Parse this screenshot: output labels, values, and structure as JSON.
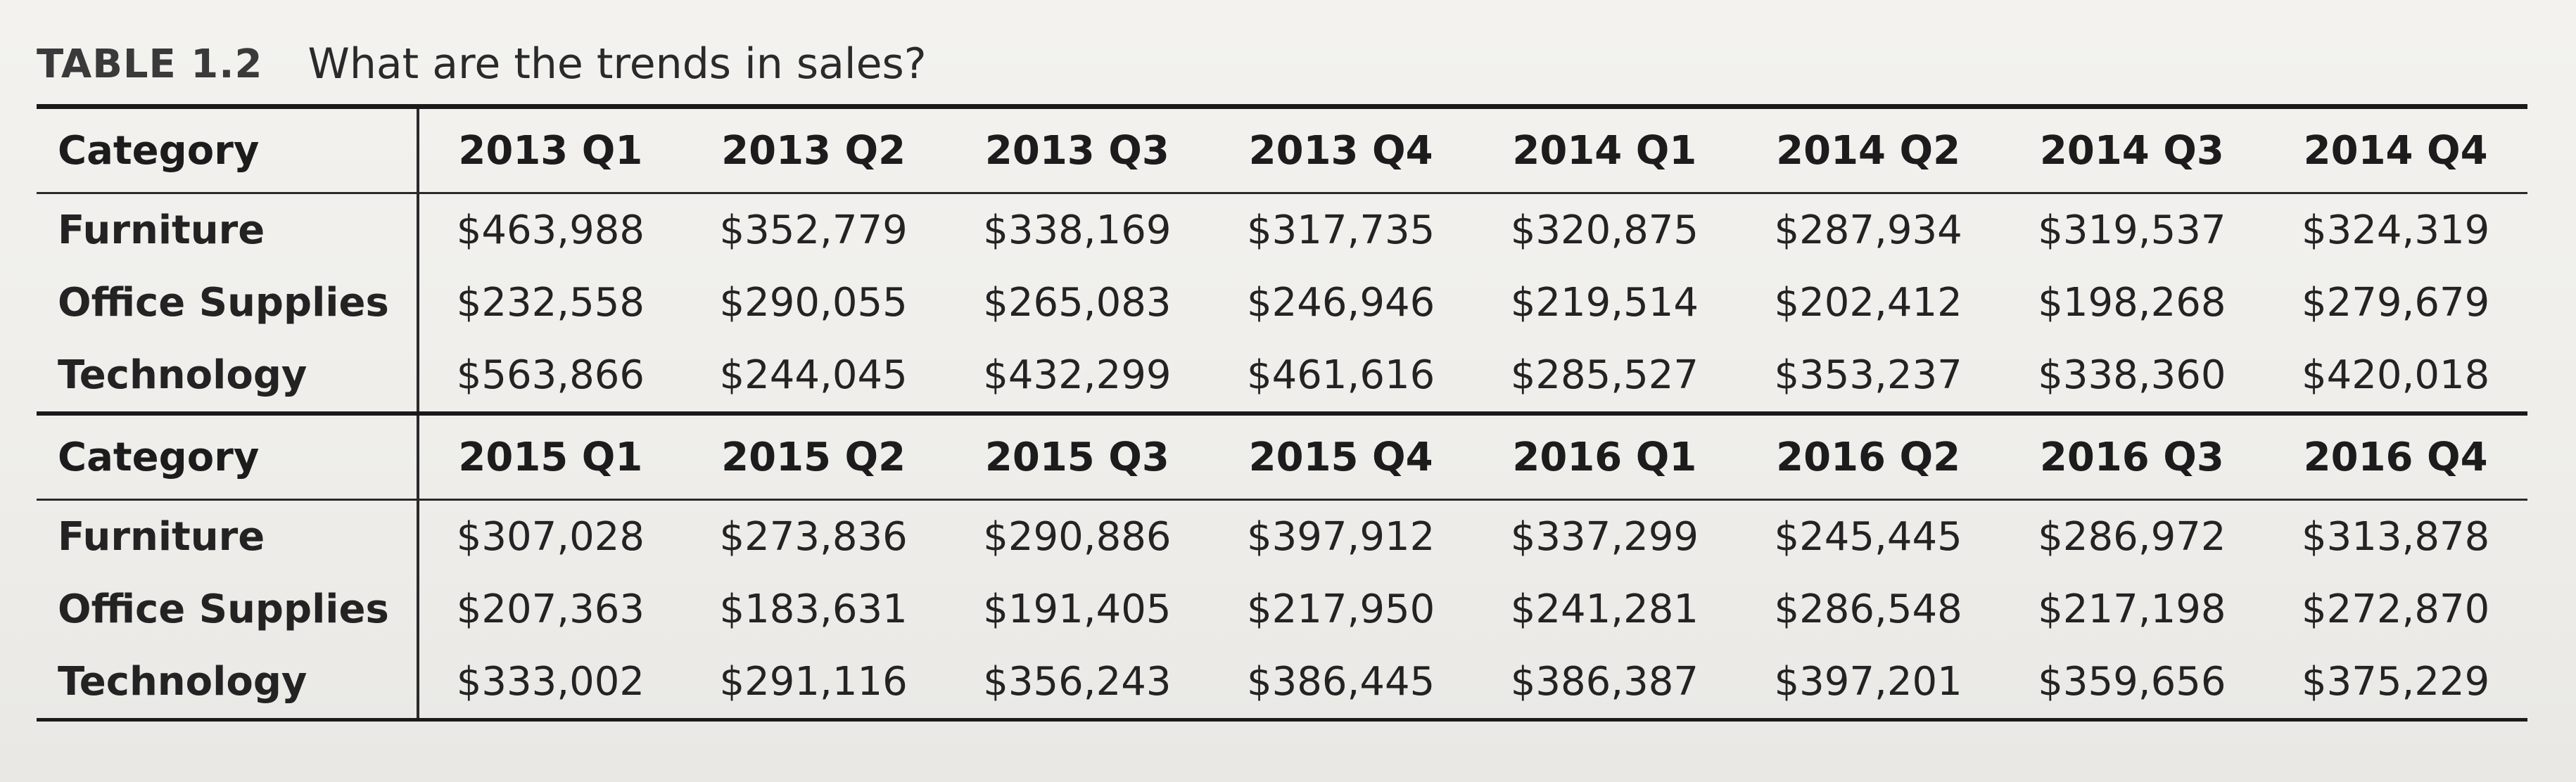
{
  "caption": {
    "label": "TABLE 1.2",
    "title": "What are the trends in sales?"
  },
  "table": {
    "blocks": [
      {
        "header": {
          "category": "Category",
          "quarters": [
            "2013 Q1",
            "2013 Q2",
            "2013 Q3",
            "2013 Q4",
            "2014 Q1",
            "2014 Q2",
            "2014 Q3",
            "2014 Q4"
          ]
        },
        "rows": [
          {
            "category": "Furniture",
            "values": [
              "$463,988",
              "$352,779",
              "$338,169",
              "$317,735",
              "$320,875",
              "$287,934",
              "$319,537",
              "$324,319"
            ]
          },
          {
            "category": "Office Supplies",
            "values": [
              "$232,558",
              "$290,055",
              "$265,083",
              "$246,946",
              "$219,514",
              "$202,412",
              "$198,268",
              "$279,679"
            ]
          },
          {
            "category": "Technology",
            "values": [
              "$563,866",
              "$244,045",
              "$432,299",
              "$461,616",
              "$285,527",
              "$353,237",
              "$338,360",
              "$420,018"
            ]
          }
        ]
      },
      {
        "header": {
          "category": "Category",
          "quarters": [
            "2015 Q1",
            "2015 Q2",
            "2015 Q3",
            "2015 Q4",
            "2016 Q1",
            "2016 Q2",
            "2016 Q3",
            "2016 Q4"
          ]
        },
        "rows": [
          {
            "category": "Furniture",
            "values": [
              "$307,028",
              "$273,836",
              "$290,886",
              "$397,912",
              "$337,299",
              "$245,445",
              "$286,972",
              "$313,878"
            ]
          },
          {
            "category": "Office Supplies",
            "values": [
              "$207,363",
              "$183,631",
              "$191,405",
              "$217,950",
              "$241,281",
              "$286,548",
              "$217,198",
              "$272,870"
            ]
          },
          {
            "category": "Technology",
            "values": [
              "$333,002",
              "$291,116",
              "$356,243",
              "$386,445",
              "$386,387",
              "$397,201",
              "$359,656",
              "$375,229"
            ]
          }
        ]
      }
    ]
  }
}
